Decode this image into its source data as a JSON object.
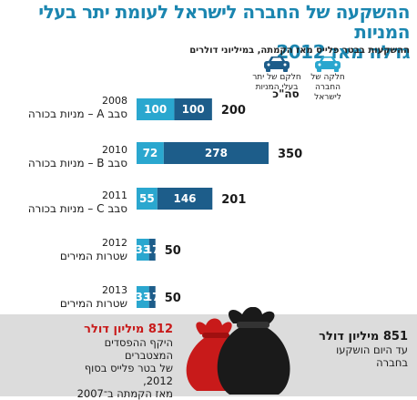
{
  "title_line1": "ההשקעה של החברה לישראל לעומת יתר בעלי המניות",
  "title_line2": "גדלה מאז 2012",
  "subtitle": "ההשקעות בבטר פלייס מאז הקמתה, במיליוני דולרים",
  "legend": {
    "israel_corp": "חלקה של החברה לישראל",
    "others": "חלקם של יתר בעלי המניות"
  },
  "total_header": "סה\"כ",
  "colors": {
    "israel_corp": "#1d5d8a",
    "others": "#2aa7cf",
    "accent_red": "#c81a1a",
    "title_blue": "#1b86b0"
  },
  "rows": [
    {
      "year": "2008",
      "label": "סבב A – מניות בכורה"
    },
    {
      "year": "2010",
      "label": "סבב B – מניות בכורה"
    },
    {
      "year": "2011",
      "label": "סבב C – מניות בכורה"
    },
    {
      "year": "2012",
      "label": "שטרות המירים"
    },
    {
      "year": "2013",
      "label": "שטרות המירים"
    }
  ],
  "chart_data": {
    "type": "bar",
    "orientation": "horizontal",
    "stacked": true,
    "title": "ההשקעה של החברה לישראל לעומת יתר בעלי המניות גדלה מאז 2012",
    "subtitle": "ההשקעות בבטר פלייס מאז הקמתה, במיליוני דולרים",
    "categories": [
      "2008",
      "2010",
      "2011",
      "2012",
      "2013"
    ],
    "series": [
      {
        "name": "חלקה של החברה לישראל",
        "values": [
          100,
          278,
          146,
          17,
          17
        ]
      },
      {
        "name": "חלקם של יתר בעלי המניות",
        "values": [
          100,
          72,
          55,
          33,
          33
        ]
      }
    ],
    "totals": [
      200,
      350,
      201,
      50,
      50
    ],
    "xlim": [
      0,
      350
    ]
  },
  "bottom": {
    "left_amount": "812 מיליון דולר",
    "left_line1": "היקף ההפסדים המצטברים",
    "left_line2": "של בטר פלייס בסוף 2012,",
    "left_line3": "מאז הקמתה ב־2007",
    "right_amount": "851 מיליון דולר",
    "right_line1": "עד היום הושקעו",
    "right_line2": "בחברה"
  }
}
